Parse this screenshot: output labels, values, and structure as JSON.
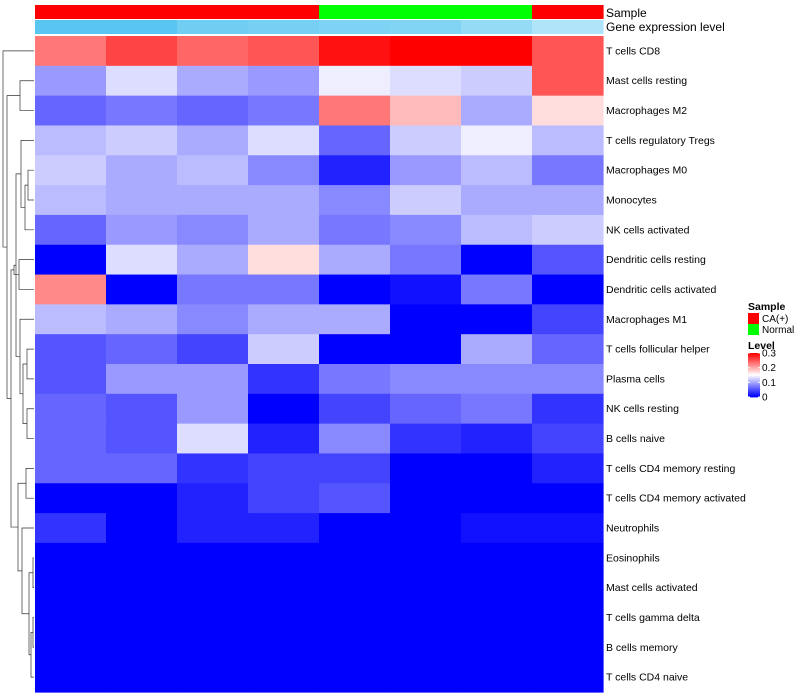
{
  "chart_data": {
    "type": "heatmap",
    "annotation_labels": {
      "sample": "Sample",
      "gene_expression": "Gene expression level"
    },
    "columns": [
      {
        "sample": "CA(+)",
        "expression": 0.95
      },
      {
        "sample": "CA(+)",
        "expression": 0.95
      },
      {
        "sample": "CA(+)",
        "expression": 0.82
      },
      {
        "sample": "CA(+)",
        "expression": 0.78
      },
      {
        "sample": "Normal",
        "expression": 0.74
      },
      {
        "sample": "Normal",
        "expression": 0.72
      },
      {
        "sample": "Normal",
        "expression": 0.6
      },
      {
        "sample": "CA(+)",
        "expression": 0.45
      }
    ],
    "rows": [
      "T cells CD8",
      "Mast cells resting",
      "Macrophages M2",
      "T cells regulatory  Tregs",
      "Macrophages M0",
      "Monocytes",
      "NK cells activated",
      "Dendritic cells resting",
      "Dendritic cells activated",
      "Macrophages M1",
      "T cells follicular helper",
      "Plasma cells",
      "NK cells resting",
      "B cells naive",
      "T cells CD4 memory resting",
      "T cells CD4 memory activated",
      "Neutrophils",
      "Eosinophils",
      "Mast cells activated",
      "T cells gamma delta",
      "B cells memory",
      "T cells CD4 naive"
    ],
    "values": [
      [
        0.23,
        0.26,
        0.24,
        0.25,
        0.29,
        0.3,
        0.3,
        0.25
      ],
      [
        0.09,
        0.13,
        0.1,
        0.09,
        0.14,
        0.13,
        0.12,
        0.25
      ],
      [
        0.06,
        0.07,
        0.06,
        0.07,
        0.23,
        0.19,
        0.1,
        0.17
      ],
      [
        0.11,
        0.12,
        0.1,
        0.13,
        0.06,
        0.12,
        0.14,
        0.11
      ],
      [
        0.12,
        0.1,
        0.11,
        0.08,
        0.02,
        0.09,
        0.11,
        0.07
      ],
      [
        0.11,
        0.1,
        0.1,
        0.1,
        0.08,
        0.12,
        0.1,
        0.1
      ],
      [
        0.06,
        0.09,
        0.08,
        0.1,
        0.07,
        0.08,
        0.11,
        0.12
      ],
      [
        0.0,
        0.13,
        0.1,
        0.17,
        0.1,
        0.07,
        0.0,
        0.05
      ],
      [
        0.22,
        0.0,
        0.07,
        0.07,
        0.0,
        0.01,
        0.07,
        0.0
      ],
      [
        0.11,
        0.1,
        0.08,
        0.1,
        0.1,
        0.0,
        0.0,
        0.04
      ],
      [
        0.05,
        0.06,
        0.04,
        0.12,
        0.0,
        0.0,
        0.1,
        0.06
      ],
      [
        0.05,
        0.09,
        0.09,
        0.03,
        0.07,
        0.08,
        0.08,
        0.08
      ],
      [
        0.06,
        0.05,
        0.09,
        0.0,
        0.04,
        0.06,
        0.07,
        0.03
      ],
      [
        0.06,
        0.05,
        0.13,
        0.02,
        0.08,
        0.03,
        0.02,
        0.04
      ],
      [
        0.06,
        0.06,
        0.03,
        0.04,
        0.04,
        0.0,
        0.0,
        0.02
      ],
      [
        0.0,
        0.0,
        0.02,
        0.04,
        0.05,
        0.0,
        0.0,
        0.0
      ],
      [
        0.03,
        0.0,
        0.02,
        0.02,
        0.0,
        0.0,
        0.01,
        0.01
      ],
      [
        0.0,
        0.0,
        0.0,
        0.0,
        0.0,
        0.0,
        0.0,
        0.0
      ],
      [
        0.0,
        0.0,
        0.0,
        0.0,
        0.0,
        0.0,
        0.0,
        0.0
      ],
      [
        0.0,
        0.0,
        0.0,
        0.0,
        0.0,
        0.0,
        0.0,
        0.0
      ],
      [
        0.0,
        0.0,
        0.0,
        0.0,
        0.0,
        0.0,
        0.0,
        0.0
      ],
      [
        0.0,
        0.0,
        0.0,
        0.0,
        0.0,
        0.0,
        0.0,
        0.0
      ]
    ],
    "color_scale": {
      "min": 0,
      "mid": 0.15,
      "max": 0.3,
      "low": "#0000ff",
      "mid_color": "#ffffff",
      "high": "#ff0000"
    },
    "legends": {
      "sample": {
        "title": "Sample",
        "items": [
          {
            "label": "CA(+)",
            "color": "#ff0000"
          },
          {
            "label": "Normal",
            "color": "#00ff00"
          }
        ]
      },
      "level": {
        "title": "Level",
        "ticks": [
          {
            "label": "0.3",
            "value": 0.3
          },
          {
            "label": "0.2",
            "value": 0.2
          },
          {
            "label": "0.1",
            "value": 0.1
          },
          {
            "label": "0",
            "value": 0
          }
        ]
      }
    },
    "dendrogram": "row-clustering"
  }
}
